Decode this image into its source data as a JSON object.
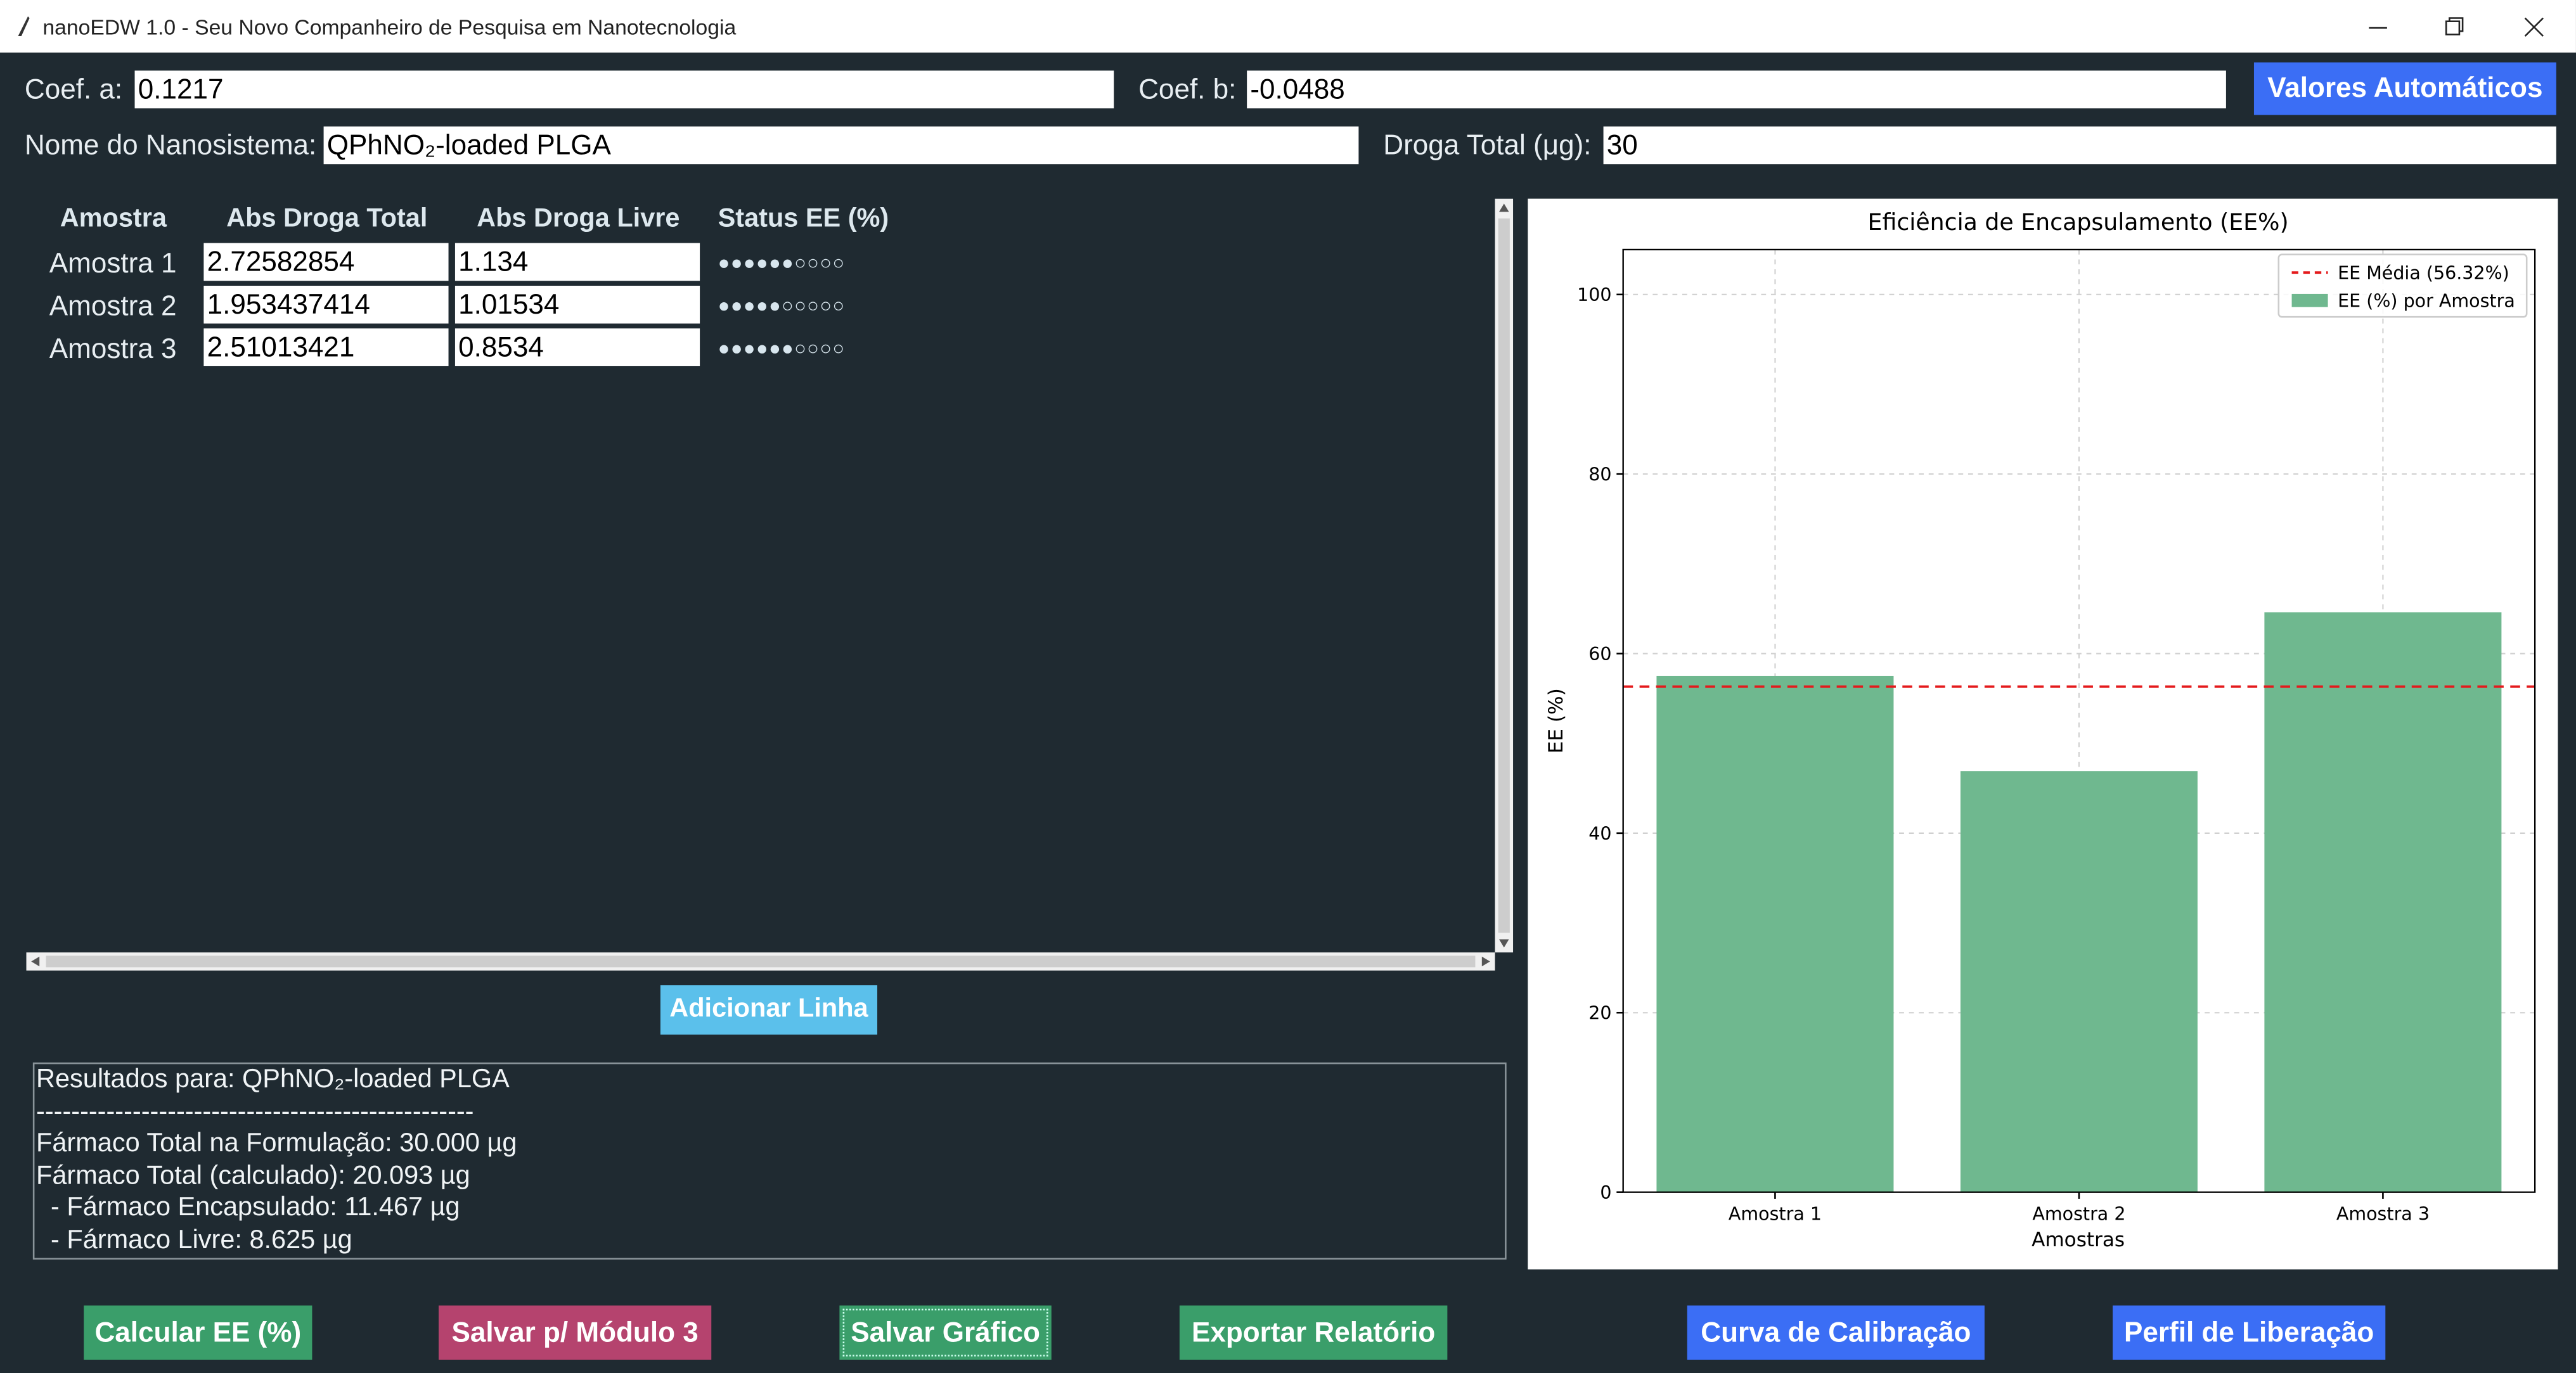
{
  "window": {
    "title": "nanoEDW 1.0 - Seu Novo Companheiro de Pesquisa em Nanotecnologia"
  },
  "form": {
    "coef_a_label": "Coef. a:",
    "coef_a": "0.1217",
    "coef_b_label": "Coef. b:",
    "coef_b": "-0.0488",
    "auto_button": "Valores Automáticos",
    "name_label": "Nome do Nanosistema:",
    "name": "QPhNO₂-loaded PLGA",
    "total_label": "Droga Total (μg):",
    "total": "30"
  },
  "table": {
    "headers": [
      "Amostra",
      "Abs Droga Total",
      "Abs Droga Livre",
      "Status EE (%)"
    ],
    "rows": [
      [
        "Amostra 1",
        "2.72582854",
        "1.134",
        "●●●●●●○○○○"
      ],
      [
        "Amostra 2",
        "1.953437414",
        "1.01534",
        "●●●●●○○○○○"
      ],
      [
        "Amostra 3",
        "2.51013421",
        "0.8534",
        "●●●●●●○○○○"
      ]
    ]
  },
  "add_button": "Adicionar Linha",
  "results": [
    "Resultados para: QPhNO₂-loaded PLGA",
    "--------------------------------------------------",
    "Fármaco Total na Formulação: 30.000 µg",
    "Fármaco Total (calculado): 20.093 µg",
    "  - Fármaco Encapsulado: 11.467 µg",
    "  - Fármaco Livre: 8.625 µg"
  ],
  "buttons": [
    "Calcular EE (%)",
    "Salvar p/ Módulo 3",
    "Salvar Gráfico",
    "Exportar Relatório",
    "Curva de Calibração",
    "Perfil de Liberação"
  ],
  "chart_data": {
    "type": "bar",
    "title": "Eficiência de Encapsulamento (EE%)",
    "xlabel": "Amostras",
    "ylabel": "EE (%)",
    "categories": [
      "Amostra 1",
      "Amostra 2",
      "Amostra 3"
    ],
    "series": [
      {
        "name": "EE (%) por Amostra",
        "color": "#6fb88f",
        "values": [
          57.5,
          46.9,
          64.6
        ]
      }
    ],
    "reference_line": {
      "name": "EE Média (56.32%)",
      "value": 56.32,
      "color": "#e41a1c"
    },
    "ylim": [
      0,
      105
    ],
    "yticks": [
      0,
      20,
      40,
      60,
      80,
      100
    ],
    "grid": true,
    "legend": "upper right"
  }
}
